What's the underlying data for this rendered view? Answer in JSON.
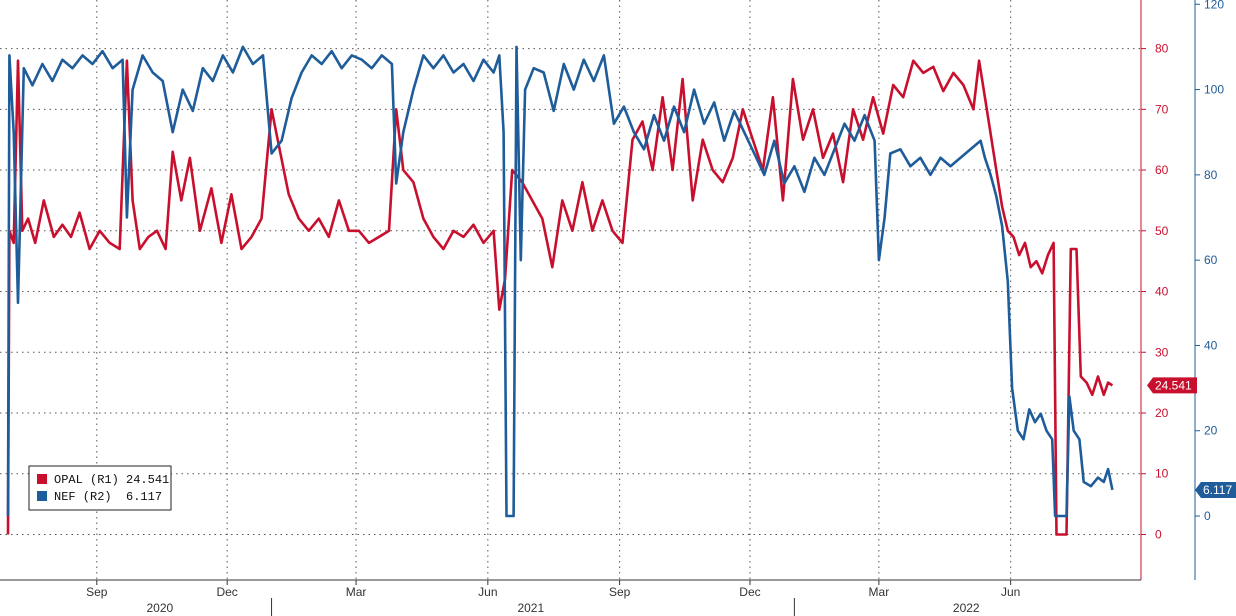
{
  "chart_data": {
    "type": "line",
    "title": "",
    "colors": {
      "opal": "#c8102e",
      "nef": "#1f5c9a"
    },
    "x_range": [
      "2020-07-01",
      "2022-08-31"
    ],
    "month_ticks": [
      {
        "label": "Sep",
        "date": "2020-09-01"
      },
      {
        "label": "Dec",
        "date": "2020-12-01"
      },
      {
        "label": "Mar",
        "date": "2021-03-01"
      },
      {
        "label": "Jun",
        "date": "2021-06-01"
      },
      {
        "label": "Sep",
        "date": "2021-09-01"
      },
      {
        "label": "Dec",
        "date": "2021-12-01"
      },
      {
        "label": "Mar",
        "date": "2022-03-01"
      },
      {
        "label": "Jun",
        "date": "2022-06-01"
      }
    ],
    "year_labels": [
      {
        "label": "2020",
        "date": "2020-10-15"
      },
      {
        "label": "2021",
        "date": "2021-07-01"
      },
      {
        "label": "2022",
        "date": "2022-05-01"
      }
    ],
    "year_separators": [
      "2021-01-01",
      "2022-01-01"
    ],
    "axis_r1": {
      "ticks": [
        0,
        10,
        20,
        30,
        40,
        50,
        60,
        70,
        80
      ],
      "ylim": [
        -7.5,
        88
      ]
    },
    "axis_r2": {
      "ticks": [
        0,
        20,
        40,
        60,
        80,
        100,
        120
      ],
      "ylim": [
        -15,
        121
      ]
    },
    "legend": {
      "placement": "bottom-left",
      "entries": [
        {
          "label": "OPAL (R1) 24.541"
        },
        {
          "label": "NEF (R2)  6.117"
        }
      ]
    },
    "last_value_labels": {
      "opal": "24.541",
      "nef": "6.117"
    },
    "series": [
      {
        "name": "OPAL (R1)",
        "axis": "R1",
        "points": [
          [
            "2020-07-01",
            0
          ],
          [
            "2020-07-02",
            50
          ],
          [
            "2020-07-05",
            48
          ],
          [
            "2020-07-08",
            78
          ],
          [
            "2020-07-11",
            50
          ],
          [
            "2020-07-15",
            52
          ],
          [
            "2020-07-20",
            48
          ],
          [
            "2020-07-26",
            55
          ],
          [
            "2020-08-02",
            49
          ],
          [
            "2020-08-08",
            51
          ],
          [
            "2020-08-14",
            49
          ],
          [
            "2020-08-20",
            53
          ],
          [
            "2020-08-27",
            47
          ],
          [
            "2020-09-03",
            50
          ],
          [
            "2020-09-10",
            48
          ],
          [
            "2020-09-17",
            47
          ],
          [
            "2020-09-22",
            78
          ],
          [
            "2020-09-26",
            55
          ],
          [
            "2020-10-01",
            47
          ],
          [
            "2020-10-07",
            49
          ],
          [
            "2020-10-13",
            50
          ],
          [
            "2020-10-19",
            47
          ],
          [
            "2020-10-24",
            63
          ],
          [
            "2020-10-30",
            55
          ],
          [
            "2020-11-05",
            62
          ],
          [
            "2020-11-12",
            50
          ],
          [
            "2020-11-20",
            57
          ],
          [
            "2020-11-27",
            48
          ],
          [
            "2020-12-04",
            56
          ],
          [
            "2020-12-11",
            47
          ],
          [
            "2020-12-18",
            49
          ],
          [
            "2020-12-25",
            52
          ],
          [
            "2021-01-01",
            70
          ],
          [
            "2021-01-07",
            63
          ],
          [
            "2021-01-13",
            56
          ],
          [
            "2021-01-20",
            52
          ],
          [
            "2021-01-27",
            50
          ],
          [
            "2021-02-03",
            52
          ],
          [
            "2021-02-10",
            49
          ],
          [
            "2021-02-17",
            55
          ],
          [
            "2021-02-24",
            50
          ],
          [
            "2021-03-03",
            50
          ],
          [
            "2021-03-10",
            48
          ],
          [
            "2021-03-17",
            49
          ],
          [
            "2021-03-24",
            50
          ],
          [
            "2021-03-29",
            70
          ],
          [
            "2021-04-03",
            60
          ],
          [
            "2021-04-10",
            58
          ],
          [
            "2021-04-17",
            52
          ],
          [
            "2021-04-24",
            49
          ],
          [
            "2021-05-01",
            47
          ],
          [
            "2021-05-08",
            50
          ],
          [
            "2021-05-15",
            49
          ],
          [
            "2021-05-22",
            51
          ],
          [
            "2021-05-29",
            48
          ],
          [
            "2021-06-05",
            50
          ],
          [
            "2021-06-09",
            37
          ],
          [
            "2021-06-13",
            42
          ],
          [
            "2021-06-18",
            60
          ],
          [
            "2021-06-25",
            58
          ],
          [
            "2021-07-02",
            55
          ],
          [
            "2021-07-09",
            52
          ],
          [
            "2021-07-16",
            44
          ],
          [
            "2021-07-23",
            55
          ],
          [
            "2021-07-30",
            50
          ],
          [
            "2021-08-06",
            58
          ],
          [
            "2021-08-13",
            50
          ],
          [
            "2021-08-20",
            55
          ],
          [
            "2021-08-27",
            50
          ],
          [
            "2021-09-03",
            48
          ],
          [
            "2021-09-10",
            65
          ],
          [
            "2021-09-17",
            68
          ],
          [
            "2021-09-24",
            60
          ],
          [
            "2021-10-01",
            72
          ],
          [
            "2021-10-08",
            60
          ],
          [
            "2021-10-15",
            75
          ],
          [
            "2021-10-22",
            55
          ],
          [
            "2021-10-29",
            65
          ],
          [
            "2021-11-05",
            60
          ],
          [
            "2021-11-12",
            58
          ],
          [
            "2021-11-19",
            62
          ],
          [
            "2021-11-26",
            70
          ],
          [
            "2021-12-03",
            65
          ],
          [
            "2021-12-10",
            60
          ],
          [
            "2021-12-17",
            72
          ],
          [
            "2021-12-24",
            55
          ],
          [
            "2021-12-31",
            75
          ],
          [
            "2022-01-07",
            65
          ],
          [
            "2022-01-14",
            70
          ],
          [
            "2022-01-21",
            62
          ],
          [
            "2022-01-28",
            66
          ],
          [
            "2022-02-04",
            58
          ],
          [
            "2022-02-11",
            70
          ],
          [
            "2022-02-18",
            65
          ],
          [
            "2022-02-25",
            72
          ],
          [
            "2022-03-04",
            66
          ],
          [
            "2022-03-11",
            74
          ],
          [
            "2022-03-18",
            72
          ],
          [
            "2022-03-25",
            78
          ],
          [
            "2022-04-01",
            76
          ],
          [
            "2022-04-08",
            77
          ],
          [
            "2022-04-15",
            73
          ],
          [
            "2022-04-22",
            76
          ],
          [
            "2022-04-29",
            74
          ],
          [
            "2022-05-06",
            70
          ],
          [
            "2022-05-10",
            78
          ],
          [
            "2022-05-14",
            72
          ],
          [
            "2022-05-18",
            66
          ],
          [
            "2022-05-22",
            60
          ],
          [
            "2022-05-26",
            54
          ],
          [
            "2022-05-30",
            50
          ],
          [
            "2022-06-03",
            49
          ],
          [
            "2022-06-07",
            46
          ],
          [
            "2022-06-11",
            48
          ],
          [
            "2022-06-15",
            44
          ],
          [
            "2022-06-19",
            45
          ],
          [
            "2022-06-23",
            43
          ],
          [
            "2022-06-27",
            46
          ],
          [
            "2022-07-01",
            48
          ],
          [
            "2022-07-03",
            0
          ],
          [
            "2022-07-10",
            0
          ],
          [
            "2022-07-13",
            47
          ],
          [
            "2022-07-17",
            47
          ],
          [
            "2022-07-20",
            26
          ],
          [
            "2022-07-24",
            25
          ],
          [
            "2022-07-28",
            23
          ],
          [
            "2022-08-01",
            26
          ],
          [
            "2022-08-05",
            23
          ],
          [
            "2022-08-08",
            25
          ],
          [
            "2022-08-11",
            24.541
          ]
        ]
      },
      {
        "name": "NEF (R2)",
        "axis": "R2",
        "points": [
          [
            "2020-07-01",
            0
          ],
          [
            "2020-07-02",
            108
          ],
          [
            "2020-07-05",
            90
          ],
          [
            "2020-07-08",
            50
          ],
          [
            "2020-07-12",
            105
          ],
          [
            "2020-07-18",
            101
          ],
          [
            "2020-07-25",
            106
          ],
          [
            "2020-08-01",
            102
          ],
          [
            "2020-08-08",
            107
          ],
          [
            "2020-08-15",
            105
          ],
          [
            "2020-08-22",
            108
          ],
          [
            "2020-08-29",
            106
          ],
          [
            "2020-09-05",
            109
          ],
          [
            "2020-09-12",
            105
          ],
          [
            "2020-09-19",
            107
          ],
          [
            "2020-09-22",
            70
          ],
          [
            "2020-09-26",
            100
          ],
          [
            "2020-10-03",
            108
          ],
          [
            "2020-10-10",
            104
          ],
          [
            "2020-10-17",
            102
          ],
          [
            "2020-10-24",
            90
          ],
          [
            "2020-10-31",
            100
          ],
          [
            "2020-11-07",
            95
          ],
          [
            "2020-11-14",
            105
          ],
          [
            "2020-11-21",
            102
          ],
          [
            "2020-11-28",
            108
          ],
          [
            "2020-12-05",
            104
          ],
          [
            "2020-12-12",
            110
          ],
          [
            "2020-12-19",
            106
          ],
          [
            "2020-12-26",
            108
          ],
          [
            "2021-01-01",
            85
          ],
          [
            "2021-01-08",
            88
          ],
          [
            "2021-01-15",
            98
          ],
          [
            "2021-01-22",
            104
          ],
          [
            "2021-01-29",
            108
          ],
          [
            "2021-02-05",
            106
          ],
          [
            "2021-02-12",
            109
          ],
          [
            "2021-02-19",
            105
          ],
          [
            "2021-02-26",
            108
          ],
          [
            "2021-03-05",
            107
          ],
          [
            "2021-03-12",
            105
          ],
          [
            "2021-03-19",
            108
          ],
          [
            "2021-03-26",
            106
          ],
          [
            "2021-03-29",
            78
          ],
          [
            "2021-04-03",
            90
          ],
          [
            "2021-04-10",
            100
          ],
          [
            "2021-04-17",
            108
          ],
          [
            "2021-04-24",
            105
          ],
          [
            "2021-05-01",
            108
          ],
          [
            "2021-05-08",
            104
          ],
          [
            "2021-05-15",
            106
          ],
          [
            "2021-05-22",
            102
          ],
          [
            "2021-05-29",
            107
          ],
          [
            "2021-06-05",
            104
          ],
          [
            "2021-06-09",
            108
          ],
          [
            "2021-06-12",
            90
          ],
          [
            "2021-06-14",
            0
          ],
          [
            "2021-06-19",
            0
          ],
          [
            "2021-06-21",
            110
          ],
          [
            "2021-06-24",
            60
          ],
          [
            "2021-06-27",
            100
          ],
          [
            "2021-07-03",
            105
          ],
          [
            "2021-07-10",
            104
          ],
          [
            "2021-07-17",
            95
          ],
          [
            "2021-07-24",
            106
          ],
          [
            "2021-07-31",
            100
          ],
          [
            "2021-08-07",
            107
          ],
          [
            "2021-08-14",
            102
          ],
          [
            "2021-08-21",
            108
          ],
          [
            "2021-08-28",
            92
          ],
          [
            "2021-09-04",
            96
          ],
          [
            "2021-09-11",
            90
          ],
          [
            "2021-09-18",
            86
          ],
          [
            "2021-09-25",
            94
          ],
          [
            "2021-10-02",
            88
          ],
          [
            "2021-10-09",
            96
          ],
          [
            "2021-10-16",
            90
          ],
          [
            "2021-10-23",
            100
          ],
          [
            "2021-10-30",
            92
          ],
          [
            "2021-11-06",
            97
          ],
          [
            "2021-11-13",
            88
          ],
          [
            "2021-11-20",
            95
          ],
          [
            "2021-11-27",
            90
          ],
          [
            "2021-12-04",
            85
          ],
          [
            "2021-12-11",
            80
          ],
          [
            "2021-12-18",
            88
          ],
          [
            "2021-12-25",
            78
          ],
          [
            "2022-01-01",
            82
          ],
          [
            "2022-01-08",
            76
          ],
          [
            "2022-01-15",
            84
          ],
          [
            "2022-01-22",
            80
          ],
          [
            "2022-01-29",
            86
          ],
          [
            "2022-02-05",
            92
          ],
          [
            "2022-02-12",
            88
          ],
          [
            "2022-02-19",
            94
          ],
          [
            "2022-02-26",
            88
          ],
          [
            "2022-03-01",
            60
          ],
          [
            "2022-03-05",
            70
          ],
          [
            "2022-03-09",
            85
          ],
          [
            "2022-03-16",
            86
          ],
          [
            "2022-03-23",
            82
          ],
          [
            "2022-03-30",
            84
          ],
          [
            "2022-04-06",
            80
          ],
          [
            "2022-04-13",
            84
          ],
          [
            "2022-04-20",
            82
          ],
          [
            "2022-04-27",
            84
          ],
          [
            "2022-05-04",
            86
          ],
          [
            "2022-05-11",
            88
          ],
          [
            "2022-05-14",
            84
          ],
          [
            "2022-05-18",
            80
          ],
          [
            "2022-05-22",
            75
          ],
          [
            "2022-05-26",
            68
          ],
          [
            "2022-05-30",
            55
          ],
          [
            "2022-06-02",
            30
          ],
          [
            "2022-06-06",
            20
          ],
          [
            "2022-06-10",
            18
          ],
          [
            "2022-06-14",
            25
          ],
          [
            "2022-06-18",
            22
          ],
          [
            "2022-06-22",
            24
          ],
          [
            "2022-06-26",
            20
          ],
          [
            "2022-06-30",
            18
          ],
          [
            "2022-07-02",
            0
          ],
          [
            "2022-07-10",
            0
          ],
          [
            "2022-07-12",
            28
          ],
          [
            "2022-07-15",
            20
          ],
          [
            "2022-07-19",
            18
          ],
          [
            "2022-07-22",
            8
          ],
          [
            "2022-07-27",
            7
          ],
          [
            "2022-08-01",
            9
          ],
          [
            "2022-08-05",
            8
          ],
          [
            "2022-08-08",
            11
          ],
          [
            "2022-08-11",
            6.117
          ]
        ]
      }
    ]
  }
}
